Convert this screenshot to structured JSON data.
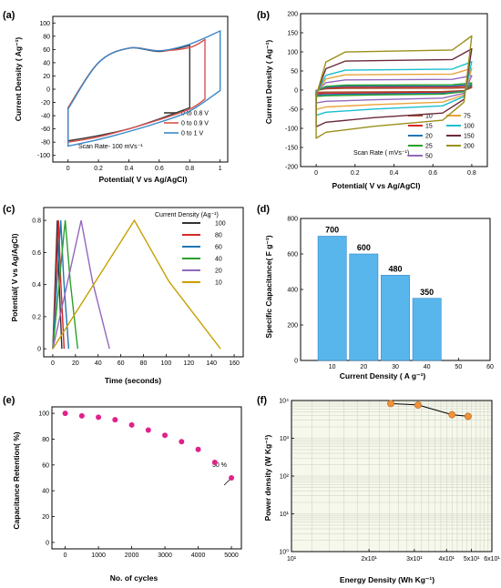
{
  "chart_data": [
    {
      "panel": "(a)",
      "type": "line",
      "xlabel": "Potential( V vs Ag/AgCl)",
      "ylabel": "Current Density ( Ag⁻¹)",
      "xlim": [
        -0.1,
        1.05
      ],
      "ylim": [
        -110,
        110
      ],
      "xticks": [
        "0",
        "0.2",
        "0.4",
        "0.6",
        "0.8",
        "1"
      ],
      "yticks": [
        "-100",
        "-80",
        "-60",
        "-40",
        "-20",
        "0",
        "20",
        "40",
        "60",
        "80",
        "100"
      ],
      "annotation": "Scan Rate- 100 mVs⁻¹",
      "legend_position": "bottom-right",
      "series": [
        {
          "name": "0 to 0.8 V",
          "color": "#3a3a3a",
          "x": [
            0,
            0.2,
            0.4,
            0.6,
            0.8
          ],
          "upper": [
            -28,
            40,
            62,
            57,
            66
          ],
          "lower": [
            -78,
            -70,
            -60,
            -45,
            -28
          ]
        },
        {
          "name": "0 to 0.9 V",
          "color": "#d9534f",
          "x": [
            0,
            0.2,
            0.4,
            0.6,
            0.8,
            0.9
          ],
          "upper": [
            -28,
            40,
            62,
            58,
            63,
            75
          ],
          "lower": [
            -80,
            -72,
            -60,
            -46,
            -30,
            -15
          ]
        },
        {
          "name": "0 to 1 V",
          "color": "#3a88c9",
          "x": [
            0,
            0.2,
            0.4,
            0.6,
            0.8,
            1.0
          ],
          "upper": [
            -30,
            40,
            62,
            58,
            68,
            88
          ],
          "lower": [
            -86,
            -76,
            -64,
            -50,
            -33,
            -2
          ]
        }
      ]
    },
    {
      "panel": "(b)",
      "type": "line",
      "xlabel": "Potential( V vs Ag/AgCl)",
      "ylabel": "Current Density  ( Ag⁻¹)",
      "xlim": [
        -0.08,
        0.88
      ],
      "ylim": [
        -200,
        200
      ],
      "xticks": [
        "0",
        "0.2",
        "0.4",
        "0.6",
        "0.8"
      ],
      "yticks": [
        "-200",
        "-150",
        "-100",
        "-50",
        "0",
        "50",
        "100",
        "150",
        "200"
      ],
      "legend_title": "Scan Rate ( mVs⁻¹)",
      "legend_position": "bottom-right",
      "series": [
        {
          "name": "10",
          "color": "#a0522d",
          "plateau": 5
        },
        {
          "name": "15",
          "color": "#d62728",
          "plateau": 8
        },
        {
          "name": "20",
          "color": "#1f77b4",
          "plateau": 11
        },
        {
          "name": "25",
          "color": "#2ca02c",
          "plateau": 14
        },
        {
          "name": "50",
          "color": "#9467bd",
          "plateau": 28
        },
        {
          "name": "75",
          "color": "#e8a33a",
          "plateau": 42
        },
        {
          "name": "100",
          "color": "#17becf",
          "plateau": 55
        },
        {
          "name": "150",
          "color": "#6b2a3a",
          "plateau": 80
        },
        {
          "name": "200",
          "color": "#9a8f1a",
          "plateau": 105
        }
      ]
    },
    {
      "panel": "(c)",
      "type": "line",
      "xlabel": "Time (seconds)",
      "ylabel": "Potential( V vs Ag/AgCl)",
      "xlim": [
        -8,
        168
      ],
      "ylim": [
        -0.05,
        0.88
      ],
      "xticks": [
        "0",
        "20",
        "40",
        "60",
        "80",
        "100",
        "120",
        "140",
        "160"
      ],
      "yticks": [
        "0",
        "0.2",
        "0.4",
        "0.6",
        "0.8"
      ],
      "legend_title": "Current Density (Ag⁻¹)",
      "legend_position": "top-right",
      "series": [
        {
          "name": "100",
          "color": "#333333",
          "peak_time": 4,
          "end_time": 8
        },
        {
          "name": "80",
          "color": "#d62728",
          "peak_time": 5,
          "end_time": 10
        },
        {
          "name": "60",
          "color": "#1f77b4",
          "peak_time": 7,
          "end_time": 14
        },
        {
          "name": "40",
          "color": "#2ca02c",
          "peak_time": 11,
          "end_time": 22
        },
        {
          "name": "20",
          "color": "#9467bd",
          "peak_time": 25,
          "end_time": 50
        },
        {
          "name": "10",
          "color": "#c8a000",
          "peak_time": 72,
          "end_time": 148
        }
      ]
    },
    {
      "panel": "(d)",
      "type": "bar",
      "xlabel": "Current Density  ( A g⁻¹)",
      "ylabel": "Specific Capacitance( F g⁻¹)",
      "xlim": [
        0,
        60
      ],
      "ylim": [
        0,
        800
      ],
      "xticks": [
        "10",
        "20",
        "30",
        "40",
        "50",
        "60"
      ],
      "yticks": [
        "0",
        "200",
        "400",
        "600",
        "800"
      ],
      "categories": [
        10,
        20,
        30,
        40
      ],
      "values": [
        700,
        600,
        480,
        350
      ],
      "data_labels": [
        "700",
        "600",
        "480",
        "350"
      ],
      "bar_color": "#58b6ec"
    },
    {
      "panel": "(e)",
      "type": "scatter",
      "xlabel": "No. of cycles",
      "ylabel": "Capacitance Retention( %)",
      "xlim": [
        -400,
        5300
      ],
      "ylim": [
        -5,
        105
      ],
      "xticks": [
        "0",
        "1000",
        "2000",
        "3000",
        "4000",
        "5000"
      ],
      "yticks": [
        "0",
        "20",
        "40",
        "60",
        "80",
        "100"
      ],
      "annotation": "50 %",
      "point_color": "#e0218a",
      "x": [
        0,
        500,
        1000,
        1500,
        2000,
        2500,
        3000,
        3500,
        4000,
        4500,
        5000
      ],
      "y": [
        100,
        98,
        97,
        95,
        91,
        87,
        83,
        78,
        72,
        62,
        50
      ]
    },
    {
      "panel": "(f)",
      "type": "line",
      "xlabel": "Energy Density (Wh Kg⁻¹)",
      "ylabel": "Power density (W Kg⁻¹)",
      "x_scale": "log",
      "y_scale": "log",
      "xlim": [
        10,
        60
      ],
      "ylim": [
        1,
        10000
      ],
      "grid": true,
      "xticks": [
        {
          "v": 10,
          "label": "10¹"
        },
        {
          "v": 20,
          "label": "2x10¹"
        },
        {
          "v": 30,
          "label": "3x10¹"
        },
        {
          "v": 40,
          "label": "4x10¹"
        },
        {
          "v": 50,
          "label": "5x10¹"
        },
        {
          "v": 60,
          "label": "6x10¹"
        }
      ],
      "yticks": [
        {
          "v": 1,
          "label": "10⁰"
        },
        {
          "v": 10,
          "label": "10¹"
        },
        {
          "v": 100,
          "label": "10²"
        },
        {
          "v": 1000,
          "label": "10³"
        },
        {
          "v": 10000,
          "label": "10⁴"
        }
      ],
      "point_color": "#f0923a",
      "x": [
        24.3,
        31,
        42,
        48.5
      ],
      "y": [
        8300,
        7600,
        4200,
        3800
      ]
    }
  ]
}
